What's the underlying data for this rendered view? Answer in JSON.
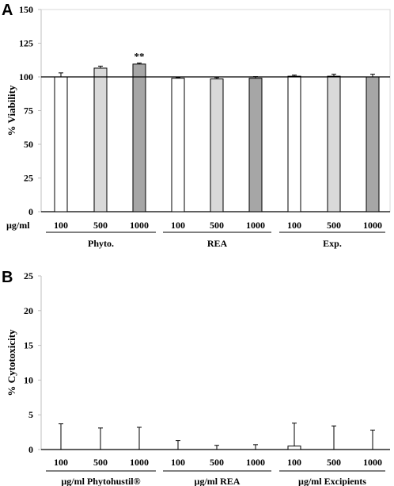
{
  "chart_data": [
    {
      "type": "bar",
      "panel_label": "A",
      "ylabel": "% Viability",
      "ylim": [
        0,
        150
      ],
      "yticks": [
        0,
        25,
        50,
        75,
        100,
        125,
        150
      ],
      "reference_line": 100,
      "unit_label": "µg/ml",
      "groups": [
        {
          "name": "Phyto.",
          "categories": [
            "100",
            "500",
            "1000"
          ],
          "values": [
            100,
            106.5,
            109.5
          ],
          "errors": [
            3,
            1.5,
            0.8
          ],
          "annotations": [
            "",
            "",
            "**"
          ]
        },
        {
          "name": "REA",
          "categories": [
            "100",
            "500",
            "1000"
          ],
          "values": [
            99,
            98.5,
            99
          ],
          "errors": [
            0.5,
            1,
            1.2
          ]
        },
        {
          "name": "Exp.",
          "categories": [
            "100",
            "500",
            "1000"
          ],
          "values": [
            100.5,
            100.5,
            100
          ],
          "errors": [
            0.8,
            1.5,
            2
          ]
        }
      ],
      "bar_colors": [
        "#ffffff",
        "#d9d9d9",
        "#a6a6a6"
      ]
    },
    {
      "type": "bar",
      "panel_label": "B",
      "ylabel": "% Cytotoxicity",
      "ylim": [
        0,
        25
      ],
      "yticks": [
        0,
        5,
        10,
        15,
        20,
        25
      ],
      "groups": [
        {
          "name": "µg/ml Phytohustil®",
          "categories": [
            "100",
            "500",
            "1000"
          ],
          "values": [
            0,
            0,
            0
          ],
          "errors": [
            3.7,
            3.1,
            3.2
          ]
        },
        {
          "name": "µg/ml REA",
          "categories": [
            "100",
            "500",
            "1000"
          ],
          "values": [
            0,
            0,
            0
          ],
          "errors": [
            1.3,
            0.6,
            0.7
          ]
        },
        {
          "name": "µg/ml Excipients",
          "categories": [
            "100",
            "500",
            "1000"
          ],
          "values": [
            0.5,
            0,
            0
          ],
          "errors": [
            3.3,
            3.4,
            2.8
          ]
        }
      ],
      "bar_colors": [
        "#ffffff",
        "#ffffff",
        "#ffffff"
      ]
    }
  ]
}
